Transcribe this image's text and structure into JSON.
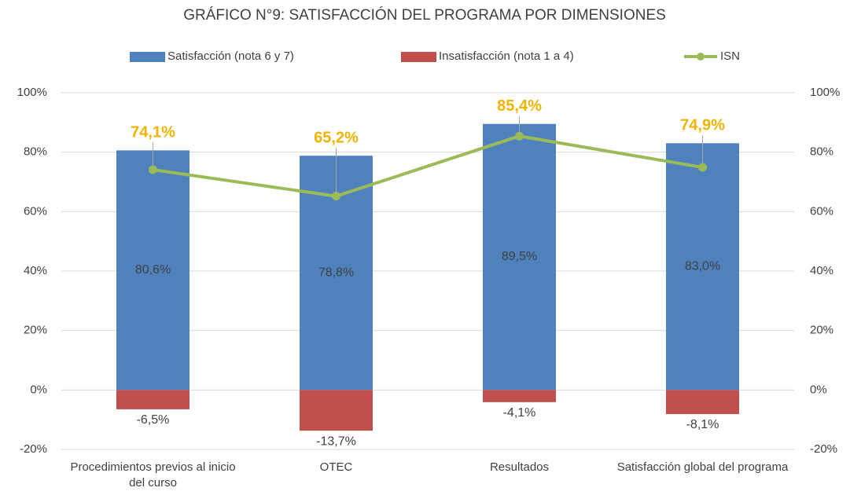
{
  "chart_data": {
    "type": "bar",
    "title": "GRÁFICO N°9: SATISFACCIÓN DEL PROGRAMA POR DIMENSIONES",
    "categories": [
      "Procedimientos previos al inicio del curso",
      "OTEC",
      "Resultados",
      "Satisfacción global del programa"
    ],
    "series": [
      {
        "name": "Satisfacción (nota 6 y 7)",
        "color": "#4f81bd",
        "values": [
          80.6,
          78.8,
          89.5,
          83.0
        ],
        "value_labels": [
          "80,6%",
          "78,8%",
          "89,5%",
          "83,0%"
        ]
      },
      {
        "name": "Insatisfacción (nota 1 a 4)",
        "color": "#c0504d",
        "values": [
          -6.5,
          -13.7,
          -4.1,
          -8.1
        ],
        "value_labels": [
          "-6,5%",
          "-13,7%",
          "-4,1%",
          "-8,1%"
        ]
      },
      {
        "name": "ISN",
        "color": "#9bbb59",
        "type": "line",
        "axis": "y2",
        "values": [
          74.1,
          65.2,
          85.4,
          74.9
        ],
        "value_labels": [
          "74,1%",
          "65,2%",
          "85,4%",
          "74,9%"
        ],
        "label_color": "#f0b400"
      }
    ],
    "ylim": [
      -20,
      100
    ],
    "yticks": [
      {
        "value": -20,
        "label": "-20%"
      },
      {
        "value": 0,
        "label": "0%"
      },
      {
        "value": 20,
        "label": "20%"
      },
      {
        "value": 40,
        "label": "40%"
      },
      {
        "value": 60,
        "label": "60%"
      },
      {
        "value": 80,
        "label": "80%"
      },
      {
        "value": 100,
        "label": "100%"
      }
    ],
    "y2lim": [
      -20,
      100
    ],
    "y2ticks": [
      {
        "value": -20,
        "label": "-20%"
      },
      {
        "value": 0,
        "label": "0%"
      },
      {
        "value": 20,
        "label": "20%"
      },
      {
        "value": 40,
        "label": "40%"
      },
      {
        "value": 60,
        "label": "60%"
      },
      {
        "value": 80,
        "label": "80%"
      },
      {
        "value": 100,
        "label": "100%"
      }
    ],
    "grid": true
  }
}
